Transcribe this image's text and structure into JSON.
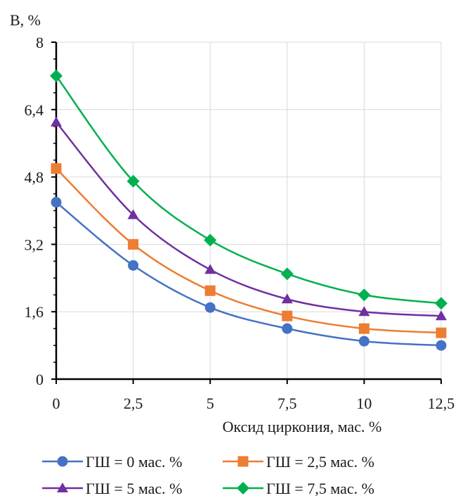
{
  "chart_data": {
    "type": "line",
    "title": "",
    "xlabel": "Оксид циркония, мас. %",
    "ylabel": "B, %",
    "x": [
      0,
      2.5,
      5,
      7.5,
      10,
      12.5
    ],
    "x_tick_labels": [
      "0",
      "2,5",
      "5",
      "7,5",
      "10",
      "12,5"
    ],
    "y_ticks": [
      0,
      1.6,
      3.2,
      4.8,
      6.4,
      8
    ],
    "y_tick_labels": [
      "0",
      "1,6",
      "3,2",
      "4,8",
      "6,4",
      "8"
    ],
    "xlim": [
      0,
      12.5
    ],
    "ylim": [
      0,
      8
    ],
    "grid": true,
    "legend_position": "bottom",
    "series": [
      {
        "name": "ГШ = 0 мас. %",
        "color": "#4472c4",
        "marker": "circle",
        "values": [
          4.2,
          2.7,
          1.7,
          1.2,
          0.9,
          0.8
        ]
      },
      {
        "name": "ГШ = 2,5 мас. %",
        "color": "#ed7d31",
        "marker": "square",
        "values": [
          5.0,
          3.2,
          2.1,
          1.5,
          1.2,
          1.1
        ]
      },
      {
        "name": "ГШ = 5 мас. %",
        "color": "#7030a0",
        "marker": "triangle",
        "values": [
          6.1,
          3.9,
          2.6,
          1.9,
          1.6,
          1.5
        ]
      },
      {
        "name": "ГШ = 7,5 мас. %",
        "color": "#00b050",
        "marker": "diamond",
        "values": [
          7.2,
          4.7,
          3.3,
          2.5,
          2.0,
          1.8
        ]
      }
    ]
  }
}
